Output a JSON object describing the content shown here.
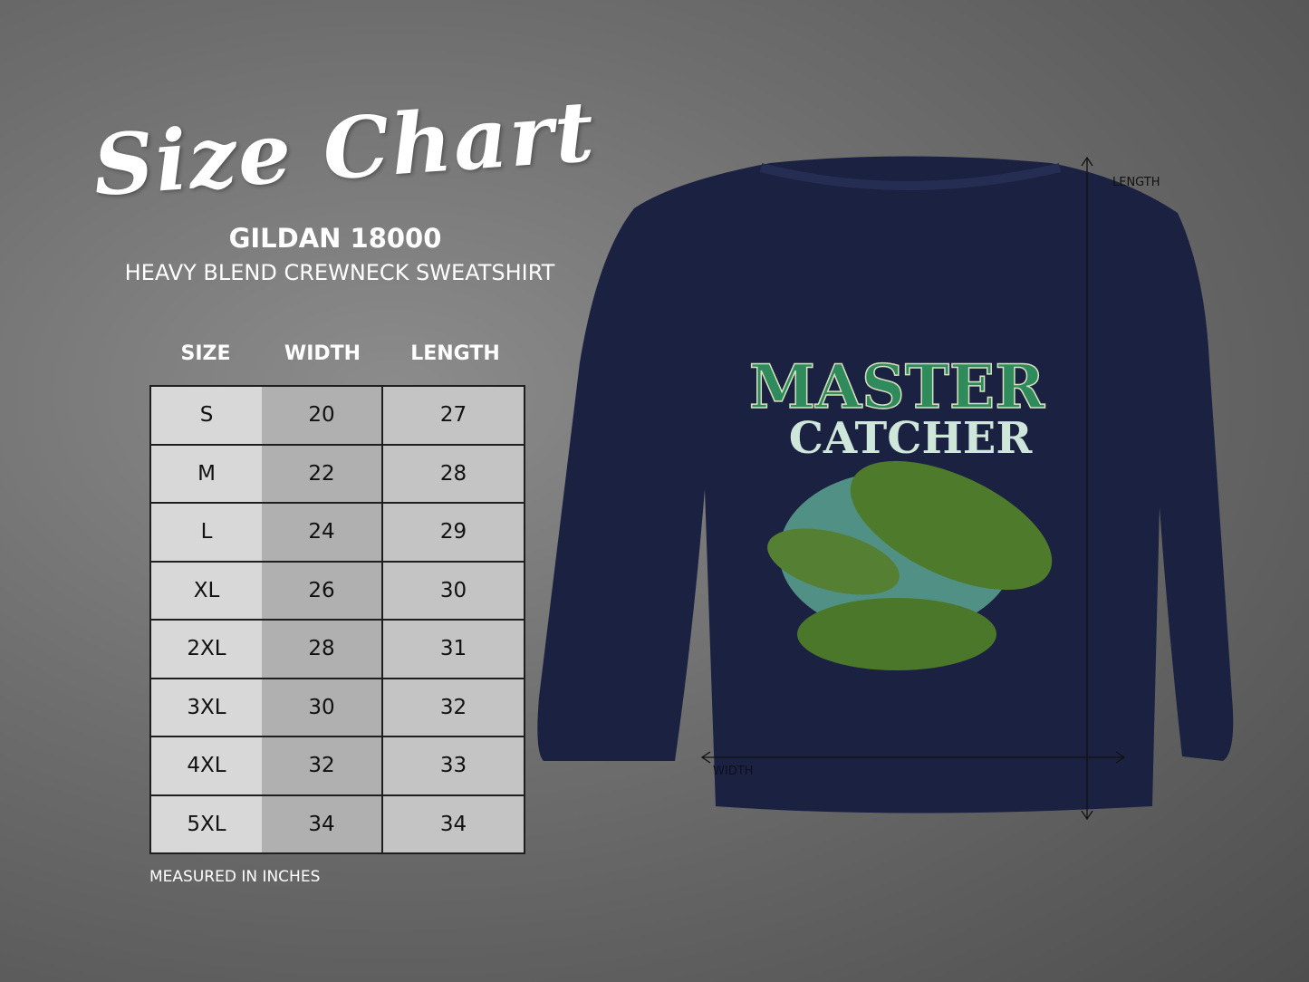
{
  "header": {
    "title": "Size Chart",
    "brand": "GILDAN 18000",
    "subtitle": "HEAVY BLEND CREWNECK SWEATSHIRT"
  },
  "table": {
    "columns": [
      "SIZE",
      "WIDTH",
      "LENGTH"
    ],
    "rows": [
      [
        "S",
        "20",
        "27"
      ],
      [
        "M",
        "22",
        "28"
      ],
      [
        "L",
        "24",
        "29"
      ],
      [
        "XL",
        "26",
        "30"
      ],
      [
        "2XL",
        "28",
        "31"
      ],
      [
        "3XL",
        "30",
        "32"
      ],
      [
        "4XL",
        "32",
        "33"
      ],
      [
        "5XL",
        "34",
        "34"
      ]
    ],
    "note": "MEASURED IN INCHES"
  },
  "product": {
    "shirt_color": "#1b2140",
    "design_line1": "MASTER",
    "design_line2": "CATCHER",
    "length_label": "LENGTH",
    "width_label": "WIDTH"
  }
}
